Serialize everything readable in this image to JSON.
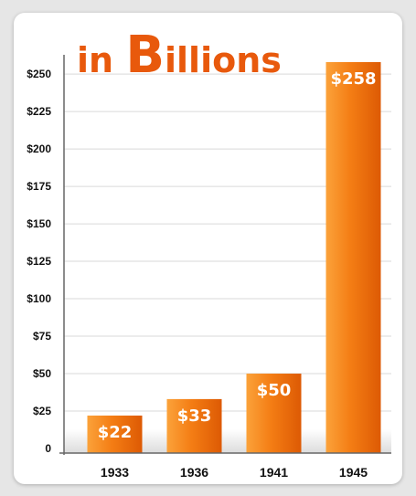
{
  "chart_data": {
    "type": "bar",
    "title": {
      "prefix": "in ",
      "cap": "B",
      "rest": "illions"
    },
    "categories": [
      "1933",
      "1936",
      "1941",
      "1945"
    ],
    "values": [
      22,
      33,
      50,
      258
    ],
    "value_labels": [
      "$22",
      "$33",
      "$50",
      "$258"
    ],
    "y_ticks": [
      0,
      25,
      50,
      75,
      100,
      125,
      150,
      175,
      200,
      225,
      250
    ],
    "y_tick_labels": [
      "0",
      "$25",
      "$50",
      "$75",
      "$100",
      "$125",
      "$150",
      "$175",
      "$200",
      "$225",
      "$250"
    ],
    "ylim": [
      0,
      258
    ],
    "grid": true,
    "colors": {
      "bar_light": "#fba23a",
      "bar_mid": "#f47d14",
      "bar_dark": "#dd5a04",
      "title": "#e8590c",
      "value_label": "#ffffff",
      "grid": "#d9d9d9",
      "axis": "#555555"
    }
  }
}
